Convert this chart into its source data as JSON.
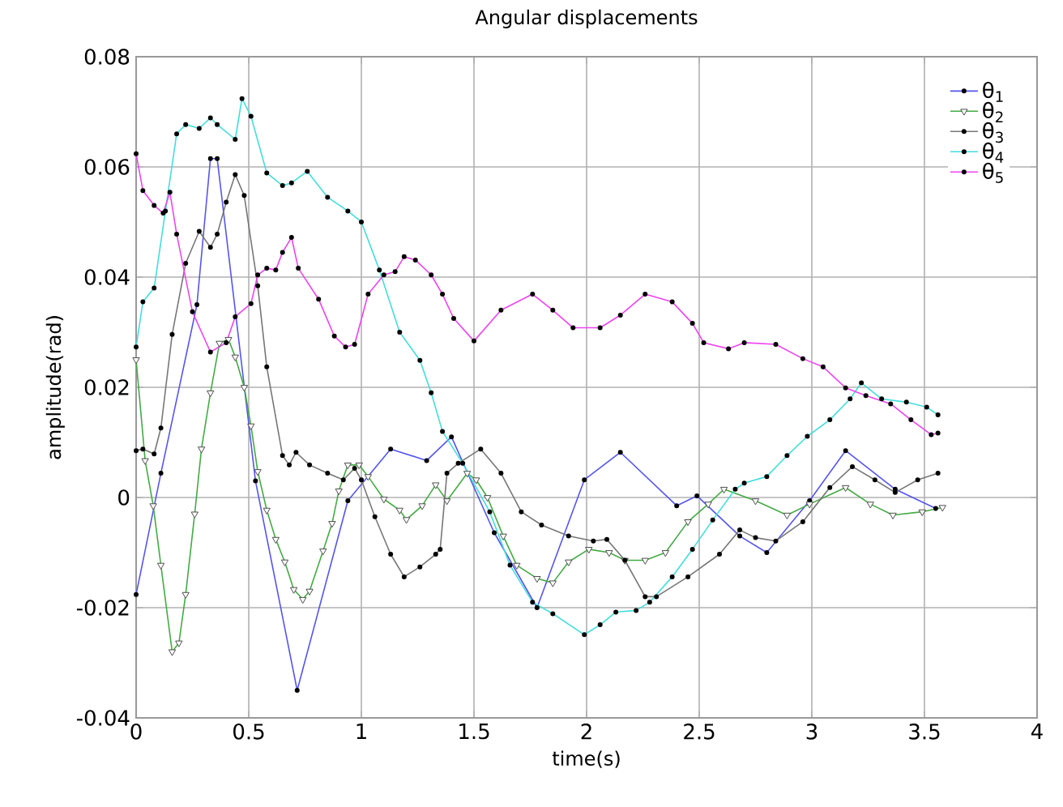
{
  "chart_data": {
    "type": "line",
    "title": "Angular displacements",
    "xlabel": "time(s)",
    "ylabel": "amplitude(rad)",
    "xlim": [
      0,
      4
    ],
    "ylim": [
      -0.04,
      0.08
    ],
    "xticks": [
      0,
      0.5,
      1,
      1.5,
      2,
      2.5,
      3,
      3.5,
      4
    ],
    "yticks": [
      -0.04,
      -0.02,
      0,
      0.02,
      0.04,
      0.06,
      0.08
    ],
    "grid": true,
    "legend": "top right",
    "series": [
      {
        "name": "θ$_{1}$",
        "color": "#5555ee",
        "marker": "circle",
        "x": [
          0,
          0.11,
          0.27,
          0.33,
          0.36,
          0.53,
          0.715,
          0.94,
          1.13,
          1.29,
          1.4,
          1.59,
          1.78,
          1.99,
          2.15,
          2.4,
          2.49,
          2.68,
          2.8,
          2.99,
          3.15,
          3.37,
          3.55
        ],
        "values": [
          -0.0176,
          0.0044,
          0.035,
          0.0615,
          0.0615,
          0.003,
          -0.035,
          -0.0006,
          0.0088,
          0.0067,
          0.011,
          -0.0064,
          -0.02,
          0.0032,
          0.0082,
          -0.0015,
          0.0003,
          -0.007,
          -0.01,
          -0.0006,
          0.0085,
          0.0015,
          -0.002
        ]
      },
      {
        "name": "θ$_{2}$",
        "color": "#44aa44",
        "marker": "triangle",
        "x": [
          0,
          0.04,
          0.076,
          0.11,
          0.16,
          0.19,
          0.22,
          0.26,
          0.29,
          0.33,
          0.37,
          0.41,
          0.44,
          0.48,
          0.51,
          0.54,
          0.58,
          0.62,
          0.66,
          0.7,
          0.74,
          0.77,
          0.83,
          0.87,
          0.9,
          0.94,
          0.99,
          1.03,
          1.1,
          1.17,
          1.2,
          1.27,
          1.33,
          1.38,
          1.47,
          1.51,
          1.56,
          1.63,
          1.69,
          1.78,
          1.85,
          1.92,
          2.01,
          2.1,
          2.17,
          2.26,
          2.35,
          2.45,
          2.54,
          2.61,
          2.75,
          2.89,
          2.99,
          3.15,
          3.26,
          3.36,
          3.49,
          3.58
        ],
        "values": [
          0.025,
          0.0067,
          -0.0015,
          -0.0123,
          -0.028,
          -0.0264,
          -0.0176,
          -0.003,
          0.0088,
          0.019,
          0.028,
          0.0287,
          0.0255,
          0.02,
          0.013,
          0.0047,
          -0.0023,
          -0.0076,
          -0.0117,
          -0.0167,
          -0.0185,
          -0.017,
          -0.0097,
          -0.0047,
          0.0012,
          0.0059,
          0.0059,
          0.0038,
          -0.0003,
          -0.0023,
          -0.004,
          -0.0015,
          0.0023,
          -0.0006,
          0.0044,
          0.0032,
          0,
          -0.007,
          -0.0123,
          -0.0147,
          -0.0155,
          -0.0117,
          -0.0094,
          -0.01,
          -0.0114,
          -0.0114,
          -0.01,
          -0.0044,
          -0.0012,
          0.0015,
          -0.0006,
          -0.0032,
          -0.0012,
          0.0018,
          -0.0012,
          -0.0032,
          -0.0026,
          -0.0018
        ]
      },
      {
        "name": "θ$_{3}$",
        "color": "#777777",
        "marker": "circle",
        "x": [
          0,
          0.03,
          0.08,
          0.11,
          0.16,
          0.22,
          0.28,
          0.33,
          0.36,
          0.4,
          0.44,
          0.48,
          0.54,
          0.58,
          0.65,
          0.68,
          0.71,
          0.77,
          0.85,
          0.92,
          0.97,
          1.0,
          1.06,
          1.13,
          1.19,
          1.26,
          1.33,
          1.35,
          1.38,
          1.43,
          1.53,
          1.62,
          1.71,
          1.8,
          1.92,
          2.03,
          2.09,
          2.17,
          2.26,
          2.31,
          2.45,
          2.59,
          2.68,
          2.75,
          2.84,
          2.96,
          3.08,
          3.18,
          3.28,
          3.37,
          3.47,
          3.56
        ],
        "values": [
          0.0085,
          0.0088,
          0.0079,
          0.0126,
          0.0296,
          0.0425,
          0.0483,
          0.0454,
          0.0478,
          0.0536,
          0.0586,
          0.0548,
          0.0384,
          0.0237,
          0.0076,
          0.0059,
          0.0082,
          0.0059,
          0.0044,
          0.0032,
          0.0053,
          0.0032,
          -0.0035,
          -0.0103,
          -0.0144,
          -0.0126,
          -0.0103,
          -0.0094,
          0.0044,
          0.0062,
          0.0088,
          0.0044,
          -0.0026,
          -0.005,
          -0.007,
          -0.0079,
          -0.0076,
          -0.0114,
          -0.018,
          -0.018,
          -0.0144,
          -0.0103,
          -0.0059,
          -0.0073,
          -0.0079,
          -0.0044,
          0.0018,
          0.0056,
          0.0032,
          0.0009,
          0.0032,
          0.0044
        ]
      },
      {
        "name": "θ$_{4}$",
        "color": "#44dddd",
        "marker": "circle",
        "x": [
          0,
          0.03,
          0.08,
          0.13,
          0.18,
          0.22,
          0.28,
          0.33,
          0.36,
          0.44,
          0.47,
          0.51,
          0.58,
          0.65,
          0.69,
          0.76,
          0.85,
          0.94,
          1.0,
          1.08,
          1.17,
          1.26,
          1.31,
          1.36,
          1.45,
          1.57,
          1.66,
          1.76,
          1.85,
          1.99,
          2.06,
          2.13,
          2.22,
          2.28,
          2.38,
          2.47,
          2.56,
          2.66,
          2.7,
          2.8,
          2.89,
          2.98,
          3.08,
          3.17,
          3.22,
          3.31,
          3.42,
          3.51,
          3.56
        ],
        "values": [
          0.0273,
          0.0355,
          0.038,
          0.052,
          0.066,
          0.0677,
          0.067,
          0.0689,
          0.0677,
          0.065,
          0.0724,
          0.0692,
          0.0589,
          0.0566,
          0.0571,
          0.0592,
          0.0545,
          0.052,
          0.05,
          0.0413,
          0.03,
          0.0249,
          0.019,
          0.012,
          0.0062,
          -0.0026,
          -0.0123,
          -0.019,
          -0.0211,
          -0.0249,
          -0.0231,
          -0.0208,
          -0.0205,
          -0.019,
          -0.0144,
          -0.0094,
          -0.0041,
          0.0015,
          0.0026,
          0.0038,
          0.0076,
          0.0111,
          0.0141,
          0.0179,
          0.0208,
          0.0179,
          0.0173,
          0.0164,
          0.015
        ]
      },
      {
        "name": "θ$_{5}$",
        "color": "#ee44ee",
        "marker": "circle",
        "x": [
          0,
          0.03,
          0.08,
          0.12,
          0.15,
          0.18,
          0.25,
          0.33,
          0.4,
          0.44,
          0.51,
          0.54,
          0.58,
          0.62,
          0.65,
          0.69,
          0.72,
          0.81,
          0.88,
          0.93,
          0.97,
          1.03,
          1.1,
          1.15,
          1.19,
          1.24,
          1.31,
          1.36,
          1.41,
          1.5,
          1.62,
          1.76,
          1.85,
          1.94,
          2.06,
          2.15,
          2.26,
          2.38,
          2.47,
          2.52,
          2.63,
          2.7,
          2.84,
          2.96,
          3.05,
          3.15,
          3.24,
          3.35,
          3.44,
          3.53,
          3.56
        ],
        "values": [
          0.0624,
          0.0557,
          0.053,
          0.0516,
          0.0554,
          0.0478,
          0.0337,
          0.0264,
          0.0281,
          0.0328,
          0.0352,
          0.0404,
          0.0416,
          0.0413,
          0.0445,
          0.0472,
          0.0416,
          0.036,
          0.0293,
          0.0273,
          0.0278,
          0.0369,
          0.0404,
          0.041,
          0.0437,
          0.0431,
          0.0404,
          0.0369,
          0.0325,
          0.0284,
          0.034,
          0.0369,
          0.034,
          0.0308,
          0.0308,
          0.0331,
          0.0369,
          0.0355,
          0.0316,
          0.0281,
          0.027,
          0.0281,
          0.0278,
          0.0252,
          0.0237,
          0.0199,
          0.0185,
          0.017,
          0.0141,
          0.0114,
          0.0117
        ]
      }
    ]
  }
}
